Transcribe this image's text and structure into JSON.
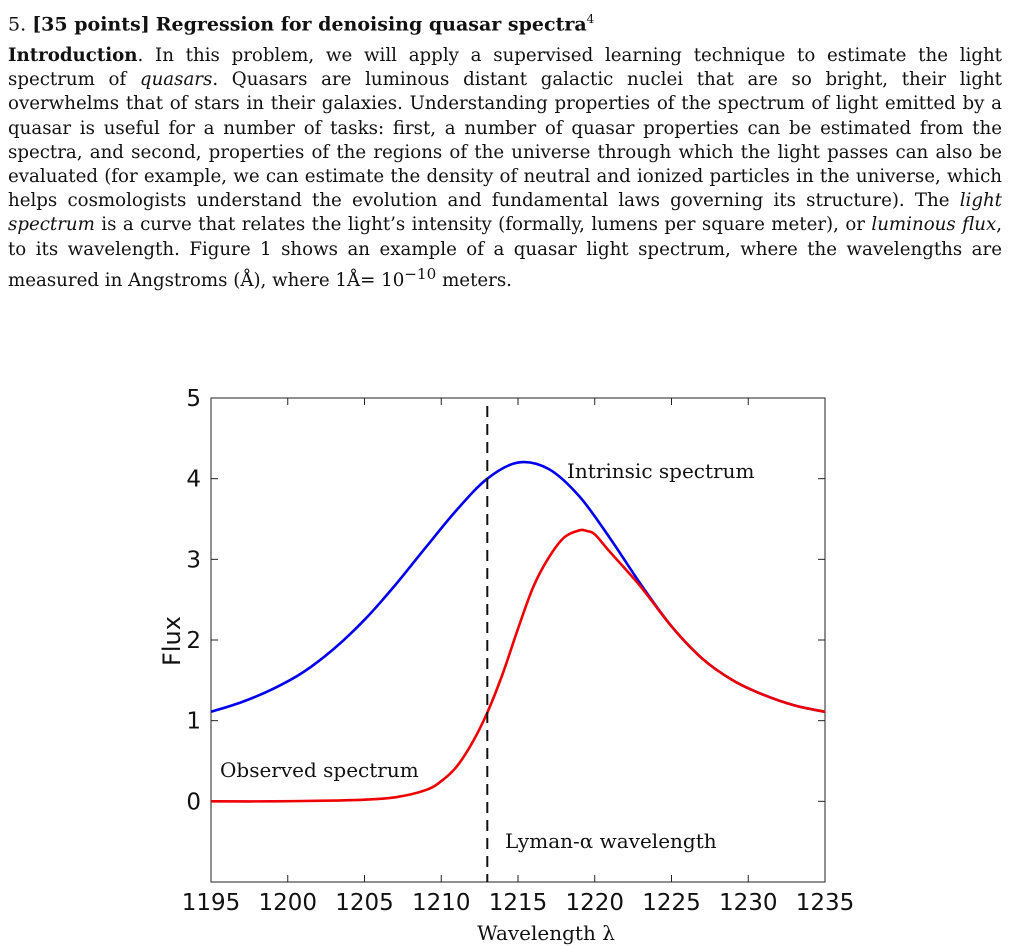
{
  "section": {
    "number": "5.",
    "points": "[35 points]",
    "title": "Regression for denoising quasar spectra",
    "footnote": "4"
  },
  "intro": {
    "lead": "Introduction",
    "t1": ". In this problem, we will apply a supervised learning technique to estimate the light spectrum of ",
    "e1": "quasars",
    "t2": ". Quasars are luminous distant galactic nuclei that are so bright, their light overwhelms that of stars in their galaxies. Understanding properties of the spectrum of light emitted by a quasar is useful for a number of tasks: first, a number of quasar properties can be estimated from the spectra, and second, properties of the regions of the universe through which the light passes can also be evaluated (for example, we can estimate the density of neutral and ionized particles in the universe, which helps cosmologists understand the evolution and fundamental laws governing its structure). The ",
    "e2": "light spectrum",
    "t3": " is a curve that relates the light’s intensity (formally, lumens per square meter), or ",
    "e3": "luminous flux",
    "t4": ", to its wavelength. Figure 1 shows an example of a quasar light spectrum, where the wavelengths are measured in Angstroms (Å), where 1Å= 10",
    "exp": "−10",
    "t5": " meters."
  },
  "chart_data": {
    "type": "line",
    "xlabel": "Wavelength λ",
    "ylabel": "Flux",
    "xlim": [
      1195,
      1235
    ],
    "ylim": [
      -1,
      5
    ],
    "x_ticks": [
      "1195",
      "1200",
      "1205",
      "1210",
      "1215",
      "1220",
      "1225",
      "1230",
      "1235"
    ],
    "y_ticks": [
      "0",
      "1",
      "2",
      "3",
      "4",
      "5"
    ],
    "grid": false,
    "series": [
      {
        "label": "Intrinsic spectrum",
        "color": "#0000ee",
        "x": [
          1195,
          1197,
          1199,
          1201,
          1203,
          1205,
          1207,
          1209,
          1211,
          1213,
          1215,
          1217,
          1219,
          1221,
          1223,
          1225,
          1227,
          1229,
          1231,
          1233,
          1235
        ],
        "y": [
          1.11,
          1.23,
          1.39,
          1.6,
          1.89,
          2.25,
          2.68,
          3.15,
          3.61,
          4.0,
          4.2,
          4.12,
          3.78,
          3.26,
          2.69,
          2.17,
          1.77,
          1.5,
          1.32,
          1.19,
          1.11
        ]
      },
      {
        "label": "Observed spectrum",
        "color": "#ee0000",
        "x": [
          1195,
          1199,
          1203,
          1205,
          1207,
          1209,
          1210,
          1211,
          1212,
          1213,
          1214,
          1215,
          1216,
          1217,
          1218,
          1219,
          1219.5,
          1220,
          1221,
          1223,
          1225,
          1227,
          1229,
          1231,
          1233,
          1235
        ],
        "y": [
          0,
          0,
          0.01,
          0.02,
          0.05,
          0.14,
          0.25,
          0.43,
          0.72,
          1.1,
          1.58,
          2.14,
          2.66,
          3.02,
          3.27,
          3.36,
          3.35,
          3.31,
          3.09,
          2.66,
          2.17,
          1.77,
          1.5,
          1.32,
          1.19,
          1.11
        ]
      }
    ],
    "vline": {
      "x": 1213,
      "label": "Lyman-α wavelength",
      "style": "dashed"
    }
  }
}
